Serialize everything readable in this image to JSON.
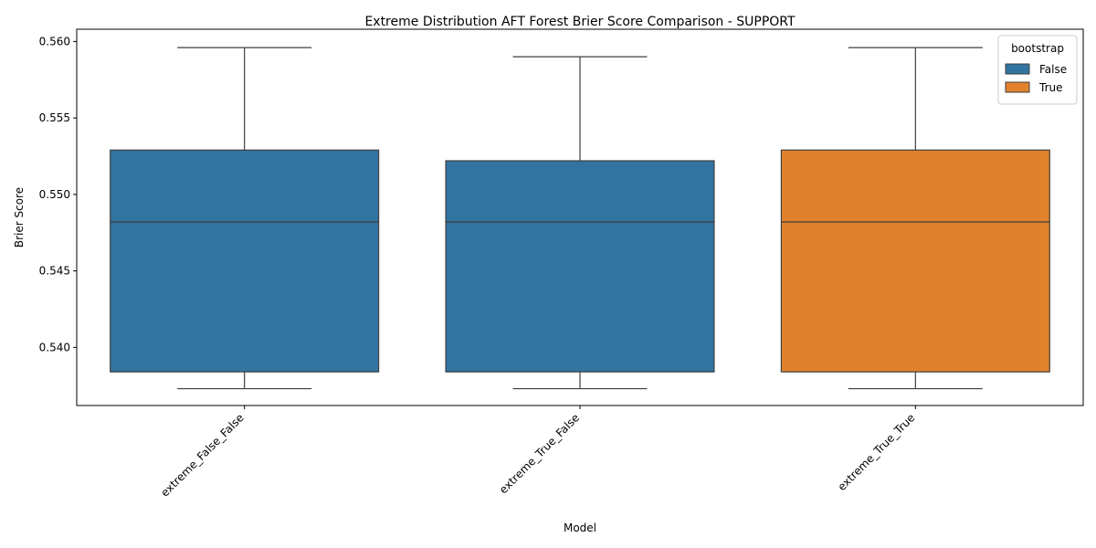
{
  "chart_data": {
    "type": "box",
    "title": "Extreme Distribution AFT Forest Brier Score Comparison - SUPPORT",
    "xlabel": "Model",
    "ylabel": "Brier Score",
    "ylim": [
      0.5362,
      0.5608
    ],
    "yticks": [
      0.54,
      0.545,
      0.55,
      0.555,
      0.56
    ],
    "ytick_labels": [
      "0.540",
      "0.545",
      "0.550",
      "0.555",
      "0.560"
    ],
    "categories": [
      "extreme_False_False",
      "extreme_True_False",
      "extreme_True_True"
    ],
    "boxes": [
      {
        "category": "extreme_False_False",
        "hue": "False",
        "whisker_low": 0.5373,
        "q1": 0.5384,
        "median": 0.5482,
        "q3": 0.5529,
        "whisker_high": 0.5596
      },
      {
        "category": "extreme_True_False",
        "hue": "False",
        "whisker_low": 0.5373,
        "q1": 0.5384,
        "median": 0.5482,
        "q3": 0.5522,
        "whisker_high": 0.559
      },
      {
        "category": "extreme_True_True",
        "hue": "True",
        "whisker_low": 0.5373,
        "q1": 0.5384,
        "median": 0.5482,
        "q3": 0.5529,
        "whisker_high": 0.5596
      }
    ],
    "legend": {
      "title": "bootstrap",
      "placement": "top-right",
      "entries": [
        {
          "label": "False",
          "color": "#3274a1"
        },
        {
          "label": "True",
          "color": "#e1812c"
        }
      ]
    },
    "colors": {
      "False": "#3274a1",
      "True": "#e1812c",
      "line": "#3f3f3f"
    },
    "grid": false
  }
}
